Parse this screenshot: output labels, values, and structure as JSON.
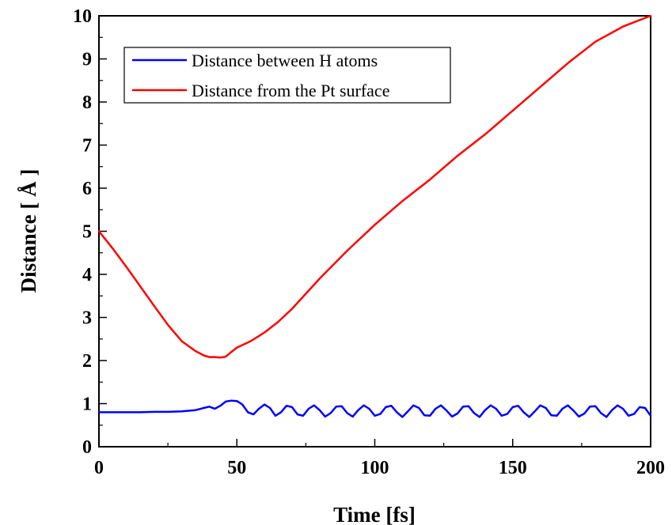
{
  "chart_data": {
    "type": "line",
    "xlabel": "Time [fs]",
    "ylabel": "Distance [ Å ]",
    "xlim": [
      0,
      200
    ],
    "ylim": [
      0,
      10
    ],
    "xticks": [
      0,
      50,
      100,
      150,
      200
    ],
    "yticks": [
      0,
      1,
      2,
      3,
      4,
      5,
      6,
      7,
      8,
      9,
      10
    ],
    "grid": false,
    "legend_position": "top-left",
    "series": [
      {
        "name": "Distance between H atoms",
        "color": "#0000ff",
        "x": [
          0,
          5,
          10,
          15,
          20,
          25,
          30,
          35,
          38,
          40,
          42,
          44,
          46,
          48,
          50,
          52,
          54,
          56,
          58,
          60,
          62,
          64,
          66,
          68,
          70,
          72,
          74,
          76,
          78,
          80,
          82,
          84,
          86,
          88,
          90,
          92,
          94,
          96,
          98,
          100,
          102,
          104,
          106,
          108,
          110,
          112,
          114,
          116,
          118,
          120,
          122,
          124,
          126,
          128,
          130,
          132,
          134,
          136,
          138,
          140,
          142,
          144,
          146,
          148,
          150,
          152,
          154,
          156,
          158,
          160,
          162,
          164,
          166,
          168,
          170,
          172,
          174,
          176,
          178,
          180,
          182,
          184,
          186,
          188,
          190,
          192,
          194,
          196,
          198,
          200
        ],
        "y": [
          0.8,
          0.8,
          0.8,
          0.8,
          0.81,
          0.81,
          0.82,
          0.85,
          0.9,
          0.93,
          0.88,
          0.95,
          1.05,
          1.07,
          1.06,
          0.98,
          0.8,
          0.75,
          0.88,
          0.98,
          0.9,
          0.72,
          0.8,
          0.95,
          0.92,
          0.75,
          0.72,
          0.88,
          0.96,
          0.85,
          0.7,
          0.78,
          0.93,
          0.94,
          0.78,
          0.7,
          0.85,
          0.96,
          0.88,
          0.72,
          0.76,
          0.92,
          0.95,
          0.8,
          0.69,
          0.82,
          0.96,
          0.9,
          0.73,
          0.72,
          0.88,
          0.96,
          0.84,
          0.7,
          0.77,
          0.93,
          0.94,
          0.78,
          0.69,
          0.85,
          0.96,
          0.88,
          0.72,
          0.76,
          0.92,
          0.95,
          0.8,
          0.69,
          0.82,
          0.96,
          0.9,
          0.73,
          0.72,
          0.88,
          0.96,
          0.84,
          0.7,
          0.77,
          0.93,
          0.94,
          0.78,
          0.69,
          0.85,
          0.96,
          0.88,
          0.72,
          0.76,
          0.92,
          0.9,
          0.72
        ]
      },
      {
        "name": "Distance from the Pt surface",
        "color": "#ff0000",
        "x": [
          0,
          5,
          10,
          15,
          20,
          25,
          30,
          35,
          38,
          40,
          42,
          44,
          46,
          48,
          50,
          55,
          60,
          65,
          70,
          80,
          90,
          100,
          110,
          120,
          130,
          140,
          150,
          160,
          170,
          180,
          190,
          200
        ],
        "y": [
          5.0,
          4.6,
          4.17,
          3.72,
          3.27,
          2.83,
          2.45,
          2.22,
          2.12,
          2.08,
          2.08,
          2.07,
          2.09,
          2.2,
          2.3,
          2.45,
          2.65,
          2.9,
          3.2,
          3.9,
          4.55,
          5.15,
          5.7,
          6.2,
          6.75,
          7.25,
          7.8,
          8.35,
          8.9,
          9.4,
          9.75,
          10.0
        ]
      }
    ]
  }
}
